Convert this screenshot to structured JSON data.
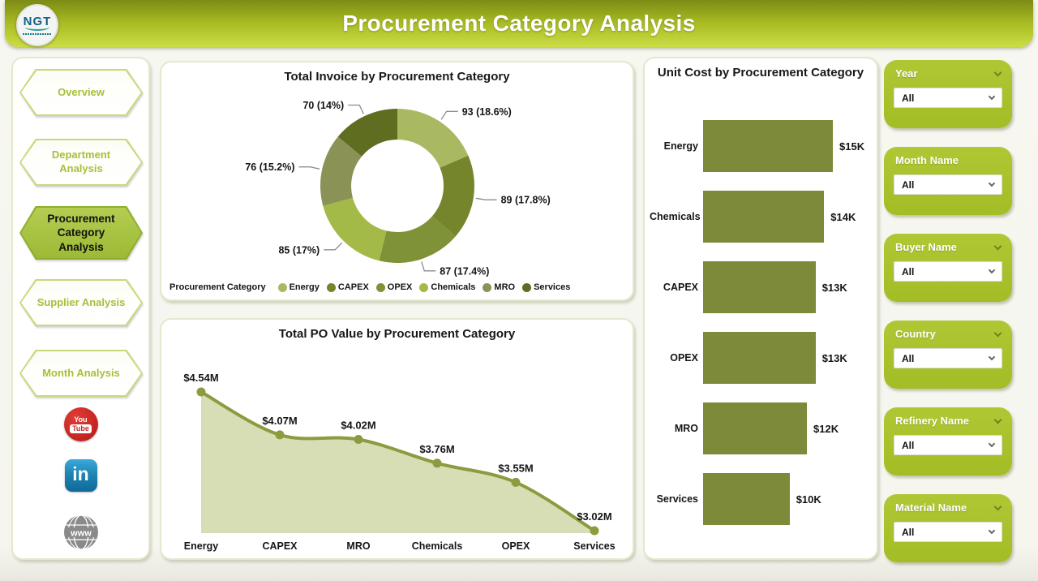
{
  "header": {
    "title": "Procurement Category Analysis",
    "logo_text": "NGT"
  },
  "sidebar": {
    "items": [
      {
        "label": "Overview",
        "active": false
      },
      {
        "label": "Department Analysis",
        "active": false
      },
      {
        "label": "Procurement Category Analysis",
        "active": true
      },
      {
        "label": "Supplier Analysis",
        "active": false
      },
      {
        "label": "Month Analysis",
        "active": false
      }
    ]
  },
  "icons": {
    "youtube": {
      "line1": "You",
      "line2": "Tube"
    },
    "linkedin": "in",
    "website": "www"
  },
  "filters": [
    {
      "label": "Year",
      "value": "All"
    },
    {
      "label": "Month Name",
      "value": "All"
    },
    {
      "label": "Buyer Name",
      "value": "All"
    },
    {
      "label": "Country",
      "value": "All"
    },
    {
      "label": "Refinery Name",
      "value": "All"
    },
    {
      "label": "Material Name",
      "value": "All"
    }
  ],
  "chart_data": [
    {
      "type": "donut",
      "title": "Total Invoice by Procurement Category",
      "legend_title": "Procurement Category",
      "legend_position": "bottom",
      "categories": [
        "Energy",
        "CAPEX",
        "OPEX",
        "Chemicals",
        "MRO",
        "Services"
      ],
      "values": [
        93,
        89,
        87,
        85,
        76,
        70
      ],
      "percents": [
        "18.6%",
        "17.8%",
        "17.4%",
        "17%",
        "15.2%",
        "14%"
      ],
      "labels": [
        "93 (18.6%)",
        "89 (17.8%)",
        "87 (17.4%)",
        "85 (17%)",
        "76 (15.2%)",
        "70 (14%)"
      ],
      "colors": [
        "#a9b961",
        "#74852c",
        "#7f9237",
        "#a3ba48",
        "#8b9255",
        "#5e6d20"
      ]
    },
    {
      "type": "area",
      "title": "Total PO Value by Procurement Category",
      "categories": [
        "Energy",
        "CAPEX",
        "MRO",
        "Chemicals",
        "OPEX",
        "Services"
      ],
      "values": [
        4.54,
        4.07,
        4.02,
        3.76,
        3.55,
        3.02
      ],
      "labels": [
        "$4.54M",
        "$4.07M",
        "$4.02M",
        "$3.76M",
        "$3.55M",
        "$3.02M"
      ],
      "unit": "$M",
      "line_color": "#8a9c3e",
      "fill_color": "#d7ddb4"
    },
    {
      "type": "bar",
      "orientation": "horizontal",
      "title": "Unit Cost by Procurement Category",
      "categories": [
        "Energy",
        "Chemicals",
        "CAPEX",
        "OPEX",
        "MRO",
        "Services"
      ],
      "values": [
        15000,
        14000,
        13000,
        13000,
        12000,
        10000
      ],
      "labels": [
        "$15K",
        "$14K",
        "$13K",
        "$13K",
        "$12K",
        "$10K"
      ],
      "bar_color": "#7c8a3a",
      "xmax": 15000
    }
  ]
}
